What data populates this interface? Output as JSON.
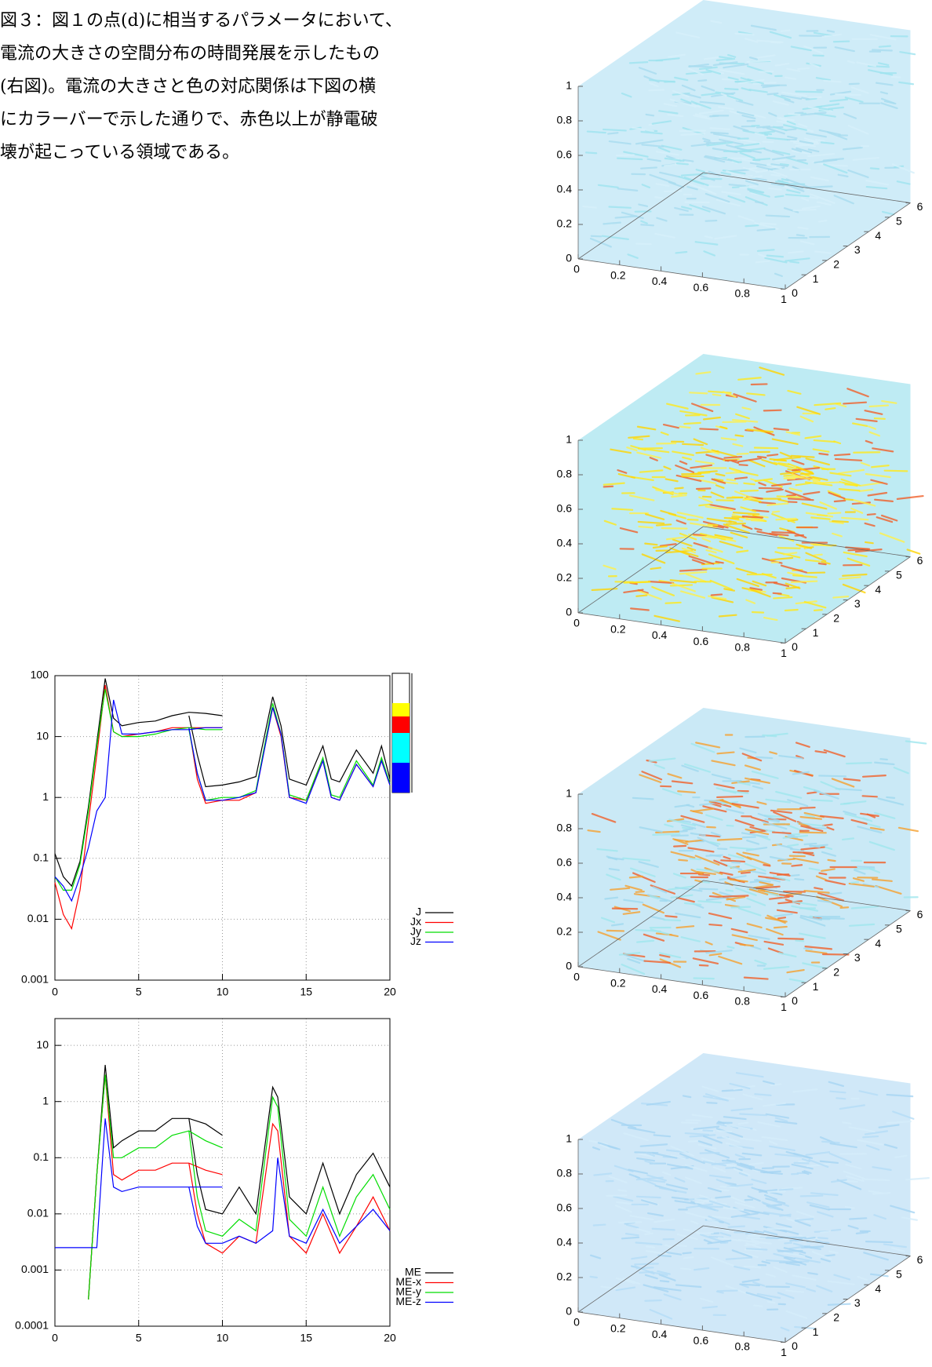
{
  "caption": {
    "lines": [
      "図３：図１の点(d)に相当するパラメータにおいて、",
      "電流の大きさの空間分布の時間発展を示したもの",
      "(右図)。電流の大きさと色の対応関係は下図の横",
      "にカラーバーで示した通りで、赤色以上が静電破",
      "壊が起こっている領域である。"
    ]
  },
  "chart_data": [
    {
      "type": "line",
      "log_y": true,
      "grid": true,
      "legend": "right-bottom",
      "x": [
        0,
        0.5,
        1,
        1.5,
        2,
        2.5,
        3,
        3.5,
        4,
        5,
        6,
        7,
        8,
        9,
        10,
        null,
        8,
        8.5,
        9,
        10,
        11,
        12,
        13,
        13.5,
        14,
        15,
        16,
        16.5,
        17,
        18,
        19,
        19.5,
        20
      ],
      "xlim": [
        0,
        20
      ],
      "xticks": [
        0,
        5,
        10,
        15,
        20
      ],
      "ylim": [
        0.001,
        100
      ],
      "yticks": [
        0.001,
        0.01,
        0.1,
        1,
        10,
        100
      ],
      "series": [
        {
          "name": "J",
          "color": "#000000",
          "values": [
            0.12,
            0.05,
            0.035,
            0.09,
            0.7,
            8,
            90,
            20,
            15,
            17,
            18,
            22,
            25,
            24,
            22,
            null,
            22,
            5,
            1.5,
            1.6,
            1.8,
            2.2,
            45,
            15,
            2,
            1.6,
            7,
            2,
            1.8,
            6,
            2.5,
            7,
            2
          ]
        },
        {
          "name": "Jx",
          "color": "#ff0000",
          "values": [
            0.04,
            0.012,
            0.007,
            0.03,
            0.4,
            5,
            70,
            12,
            10,
            11,
            12,
            14,
            14,
            14,
            14,
            null,
            14,
            2,
            0.8,
            0.9,
            0.9,
            1.2,
            30,
            10,
            1,
            0.9,
            4,
            1,
            0.9,
            3.5,
            1.5,
            4,
            1.6
          ]
        },
        {
          "name": "Jy",
          "color": "#00dd00",
          "values": [
            0.05,
            0.03,
            0.03,
            0.08,
            0.6,
            7,
            60,
            12,
            10,
            10,
            11,
            13,
            14,
            13,
            13,
            null,
            13,
            2.5,
            0.9,
            1,
            1,
            1.3,
            35,
            11,
            1.1,
            0.9,
            4.5,
            1.1,
            1,
            4,
            1.6,
            4.5,
            1.7
          ]
        },
        {
          "name": "Jz",
          "color": "#0000ff",
          "values": [
            0.05,
            0.035,
            0.02,
            0.05,
            0.15,
            0.6,
            1,
            40,
            11,
            11,
            12,
            13,
            13,
            14,
            14,
            null,
            14,
            2.5,
            0.9,
            0.9,
            1,
            1.2,
            30,
            11,
            1,
            0.8,
            4,
            1,
            0.9,
            3.5,
            1.5,
            4,
            1.6
          ]
        }
      ]
    },
    {
      "type": "line",
      "log_y": true,
      "grid": true,
      "legend": "right-bottom",
      "x": [
        0,
        1,
        1.5,
        2,
        2.5,
        3,
        3.5,
        4,
        5,
        6,
        7,
        8,
        9,
        10,
        null,
        8,
        8.5,
        9,
        10,
        11,
        12,
        13,
        13.3,
        14,
        15,
        16,
        17,
        18,
        19,
        20
      ],
      "xlim": [
        0,
        20
      ],
      "xticks": [
        0,
        5,
        10,
        15,
        20
      ],
      "ylim": [
        0.0001,
        30
      ],
      "yticks": [
        0.0001,
        0.001,
        0.01,
        0.1,
        1,
        10
      ],
      "series": [
        {
          "name": "ME",
          "color": "#000000",
          "values": [
            null,
            null,
            null,
            0.0003,
            0.05,
            4.5,
            0.15,
            0.2,
            0.3,
            0.3,
            0.5,
            0.5,
            0.4,
            0.25,
            null,
            0.5,
            0.05,
            0.012,
            0.01,
            0.03,
            0.01,
            1.8,
            1.2,
            0.02,
            0.01,
            0.08,
            0.01,
            0.05,
            0.12,
            0.03
          ]
        },
        {
          "name": "ME-x",
          "color": "#ff0000",
          "values": [
            null,
            null,
            null,
            0.0003,
            0.05,
            3,
            0.05,
            0.04,
            0.06,
            0.06,
            0.08,
            0.08,
            0.06,
            0.05,
            null,
            0.08,
            0.01,
            0.003,
            0.002,
            0.004,
            0.003,
            0.4,
            0.3,
            0.004,
            0.002,
            0.01,
            0.002,
            0.006,
            0.02,
            0.005
          ]
        },
        {
          "name": "ME-y",
          "color": "#00dd00",
          "values": [
            null,
            null,
            null,
            0.0003,
            0.05,
            3,
            0.1,
            0.1,
            0.15,
            0.15,
            0.25,
            0.3,
            0.2,
            0.15,
            null,
            0.3,
            0.02,
            0.005,
            0.004,
            0.008,
            0.005,
            1.2,
            0.8,
            0.008,
            0.004,
            0.03,
            0.004,
            0.02,
            0.05,
            0.012
          ]
        },
        {
          "name": "ME-z",
          "color": "#0000ff",
          "values": [
            0.0025,
            0.0025,
            0.0025,
            0.0025,
            0.0025,
            0.5,
            0.03,
            0.025,
            0.03,
            0.03,
            0.03,
            0.03,
            0.03,
            0.03,
            null,
            0.03,
            0.006,
            0.003,
            0.003,
            0.004,
            0.003,
            0.005,
            0.1,
            0.004,
            0.003,
            0.012,
            0.003,
            0.006,
            0.012,
            0.005
          ]
        }
      ]
    },
    {
      "type": "volume3d",
      "xlim": [
        0,
        1
      ],
      "ylim": [
        0,
        6
      ],
      "zlim": [
        0,
        1
      ],
      "xticks": [
        0,
        0.2,
        0.4,
        0.6,
        0.8,
        1
      ],
      "yticks": [
        0,
        1,
        2,
        3,
        4,
        5,
        6
      ],
      "zticks": [
        0,
        0.2,
        0.4,
        0.6,
        0.8,
        1
      ],
      "haze": "#bfe6f5",
      "streak_colors": [
        "#a8dcef",
        "#d6f0fa",
        "#9ee3ef"
      ]
    },
    {
      "type": "volume3d",
      "xlim": [
        0,
        1
      ],
      "ylim": [
        0,
        6
      ],
      "zlim": [
        0,
        1
      ],
      "xticks": [
        0,
        0.2,
        0.4,
        0.6,
        0.8,
        1
      ],
      "yticks": [
        0,
        1,
        2,
        3,
        4,
        5,
        6
      ],
      "zticks": [
        0,
        0.2,
        0.4,
        0.6,
        0.8,
        1
      ],
      "haze": "#a8e4ef",
      "streak_colors": [
        "#ffe81a",
        "#ffd500",
        "#f0602a",
        "#fff04a"
      ]
    },
    {
      "type": "volume3d",
      "xlim": [
        0,
        1
      ],
      "ylim": [
        0,
        6
      ],
      "zlim": [
        0,
        1
      ],
      "xticks": [
        0,
        0.2,
        0.4,
        0.6,
        0.8,
        1
      ],
      "yticks": [
        0,
        1,
        2,
        3,
        4,
        5,
        6
      ],
      "zticks": [
        0,
        0.2,
        0.4,
        0.6,
        0.8,
        1
      ],
      "haze": "#b8e2f3",
      "streak_colors": [
        "#f0602a",
        "#f5a030",
        "#9fd8ef",
        "#9fe6ee"
      ]
    },
    {
      "type": "volume3d",
      "xlim": [
        0,
        1
      ],
      "ylim": [
        0,
        6
      ],
      "zlim": [
        0,
        1
      ],
      "xticks": [
        0,
        0.2,
        0.4,
        0.6,
        0.8,
        1
      ],
      "yticks": [
        0,
        1,
        2,
        3,
        4,
        5,
        6
      ],
      "zticks": [
        0,
        0.2,
        0.4,
        0.6,
        0.8,
        1
      ],
      "haze": "#c0e0f5",
      "streak_colors": [
        "#a6d4f2",
        "#d4ecfa",
        "#b4dcf6"
      ]
    }
  ]
}
